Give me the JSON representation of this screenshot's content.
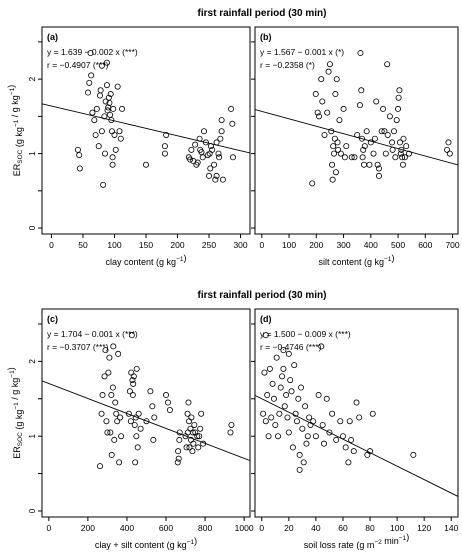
{
  "figure": {
    "section_titles": [
      "first rainfall period (30 min)",
      "first rainfall period (30 min)"
    ]
  },
  "chart_data": [
    {
      "type": "scatter",
      "panel_label": "(a)",
      "equation": "y = 1.639 − 0.002 x (***)",
      "correlation": "r = −0.4907 (***)",
      "xlabel": "clay content (g kg⁻¹)",
      "ylabel": "ERSOC (g kg⁻¹ / g kg⁻¹)",
      "xlim": [
        -15,
        315
      ],
      "ylim": [
        -0.08,
        2.7
      ],
      "xticks": [
        0,
        50,
        100,
        150,
        200,
        250,
        300
      ],
      "yticks": [
        0,
        0.5,
        1,
        1.5,
        2,
        2.5
      ],
      "ytick_labels": [
        "0",
        "",
        "1",
        "",
        "2",
        ""
      ],
      "regression": {
        "intercept": 1.639,
        "slope": -0.002
      },
      "points": [
        [
          42,
          1.05
        ],
        [
          44,
          0.98
        ],
        [
          45,
          0.8
        ],
        [
          58,
          1.82
        ],
        [
          60,
          1.95
        ],
        [
          62,
          2.35
        ],
        [
          63,
          2.05
        ],
        [
          65,
          1.55
        ],
        [
          68,
          1.45
        ],
        [
          70,
          1.25
        ],
        [
          72,
          1.6
        ],
        [
          75,
          1.1
        ],
        [
          77,
          1.78
        ],
        [
          78,
          1.85
        ],
        [
          80,
          2.18
        ],
        [
          80,
          1.3
        ],
        [
          82,
          0.58
        ],
        [
          84,
          1.5
        ],
        [
          85,
          1.0
        ],
        [
          86,
          1.7
        ],
        [
          88,
          1.92
        ],
        [
          88,
          2.22
        ],
        [
          89,
          1.58
        ],
        [
          90,
          1.62
        ],
        [
          91,
          1.75
        ],
        [
          92,
          1.68
        ],
        [
          93,
          1.52
        ],
        [
          94,
          1.8
        ],
        [
          95,
          1.45
        ],
        [
          96,
          1.3
        ],
        [
          97,
          0.95
        ],
        [
          97,
          0.85
        ],
        [
          98,
          1.6
        ],
        [
          100,
          1.25
        ],
        [
          102,
          1.05
        ],
        [
          105,
          1.9
        ],
        [
          108,
          1.3
        ],
        [
          110,
          1.2
        ],
        [
          112,
          1.6
        ],
        [
          150,
          0.85
        ],
        [
          180,
          1.0
        ],
        [
          180,
          1.1
        ],
        [
          182,
          1.25
        ],
        [
          218,
          0.95
        ],
        [
          220,
          0.92
        ],
        [
          222,
          1.05
        ],
        [
          225,
          0.9
        ],
        [
          228,
          1.12
        ],
        [
          230,
          0.85
        ],
        [
          232,
          0.88
        ],
        [
          235,
          1.2
        ],
        [
          236,
          1.05
        ],
        [
          238,
          1.02
        ],
        [
          240,
          0.95
        ],
        [
          242,
          1.3
        ],
        [
          245,
          1.15
        ],
        [
          248,
          0.98
        ],
        [
          250,
          0.7
        ],
        [
          251,
          1.0
        ],
        [
          252,
          0.8
        ],
        [
          253,
          1.1
        ],
        [
          255,
          1.05
        ],
        [
          258,
          0.85
        ],
        [
          260,
          0.65
        ],
        [
          262,
          0.7
        ],
        [
          262,
          1.15
        ],
        [
          265,
          1.0
        ],
        [
          266,
          0.95
        ],
        [
          268,
          1.2
        ],
        [
          270,
          1.3
        ],
        [
          270,
          1.45
        ],
        [
          272,
          0.65
        ],
        [
          285,
          1.6
        ],
        [
          287,
          1.4
        ],
        [
          288,
          0.95
        ]
      ]
    },
    {
      "type": "scatter",
      "panel_label": "(b)",
      "equation": "y = 1.567 − 0.001 x (*)",
      "correlation": "r = −0.2358 (*)",
      "xlabel": "silt content (g kg⁻¹)",
      "ylabel": "",
      "xlim": [
        -25,
        720
      ],
      "ylim": [
        -0.08,
        2.7
      ],
      "xticks": [
        0,
        100,
        200,
        300,
        400,
        500,
        600,
        700
      ],
      "yticks": [
        0,
        0.5,
        1,
        1.5,
        2,
        2.5
      ],
      "regression": {
        "intercept": 1.567,
        "slope": -0.001
      },
      "points": [
        [
          185,
          0.6
        ],
        [
          198,
          1.8
        ],
        [
          205,
          1.55
        ],
        [
          210,
          1.5
        ],
        [
          218,
          2.0
        ],
        [
          222,
          1.7
        ],
        [
          230,
          1.25
        ],
        [
          240,
          1.55
        ],
        [
          245,
          2.1
        ],
        [
          250,
          2.2
        ],
        [
          255,
          1.3
        ],
        [
          258,
          0.85
        ],
        [
          260,
          0.65
        ],
        [
          262,
          1.1
        ],
        [
          265,
          1.0
        ],
        [
          268,
          1.2
        ],
        [
          270,
          1.8
        ],
        [
          272,
          0.75
        ],
        [
          275,
          2.0
        ],
        [
          278,
          1.15
        ],
        [
          280,
          1.05
        ],
        [
          285,
          1.45
        ],
        [
          290,
          1.0
        ],
        [
          300,
          1.6
        ],
        [
          305,
          0.95
        ],
        [
          310,
          1.1
        ],
        [
          330,
          0.95
        ],
        [
          340,
          0.95
        ],
        [
          350,
          1.25
        ],
        [
          360,
          1.65
        ],
        [
          362,
          2.35
        ],
        [
          365,
          1.85
        ],
        [
          368,
          1.2
        ],
        [
          370,
          0.95
        ],
        [
          372,
          1.05
        ],
        [
          375,
          0.85
        ],
        [
          378,
          1.1
        ],
        [
          385,
          1.3
        ],
        [
          395,
          0.85
        ],
        [
          400,
          1.15
        ],
        [
          410,
          1.0
        ],
        [
          415,
          1.2
        ],
        [
          420,
          1.7
        ],
        [
          425,
          0.85
        ],
        [
          430,
          0.7
        ],
        [
          430,
          0.8
        ],
        [
          440,
          1.3
        ],
        [
          445,
          1.6
        ],
        [
          450,
          1.3
        ],
        [
          455,
          1.0
        ],
        [
          460,
          2.2
        ],
        [
          462,
          1.25
        ],
        [
          470,
          1.5
        ],
        [
          478,
          1.15
        ],
        [
          480,
          1.05
        ],
        [
          485,
          1.3
        ],
        [
          490,
          0.95
        ],
        [
          495,
          1.45
        ],
        [
          500,
          1.6
        ],
        [
          502,
          1.75
        ],
        [
          505,
          1.85
        ],
        [
          507,
          1.15
        ],
        [
          510,
          1.0
        ],
        [
          512,
          1.05
        ],
        [
          515,
          0.95
        ],
        [
          518,
          0.85
        ],
        [
          520,
          1.2
        ],
        [
          525,
          0.95
        ],
        [
          530,
          1.1
        ],
        [
          540,
          1.0
        ],
        [
          680,
          1.05
        ],
        [
          685,
          1.15
        ],
        [
          690,
          1.0
        ]
      ]
    },
    {
      "type": "scatter",
      "panel_label": "(c)",
      "equation": "y = 1.704 − 0.001 x (***)",
      "correlation": "r = −0.3707 (***)",
      "xlabel": "clay + silt content (g kg⁻¹)",
      "ylabel": "ERSOC (g kg⁻¹ / g kg⁻¹)",
      "xlim": [
        -35,
        1030
      ],
      "ylim": [
        -0.08,
        2.7
      ],
      "xticks": [
        0,
        200,
        400,
        600,
        800,
        1000
      ],
      "yticks": [
        0,
        0.5,
        1,
        1.5,
        2,
        2.5
      ],
      "ytick_labels": [
        "0",
        "",
        "1",
        "",
        "2",
        ""
      ],
      "regression": {
        "intercept": 1.704,
        "slope": -0.001
      },
      "points": [
        [
          262,
          0.6
        ],
        [
          270,
          1.3
        ],
        [
          275,
          1.55
        ],
        [
          285,
          1.8
        ],
        [
          290,
          2.15
        ],
        [
          295,
          1.2
        ],
        [
          300,
          1.05
        ],
        [
          305,
          1.85
        ],
        [
          310,
          2.05
        ],
        [
          315,
          1.05
        ],
        [
          320,
          1.55
        ],
        [
          322,
          0.75
        ],
        [
          328,
          1.65
        ],
        [
          330,
          2.2
        ],
        [
          335,
          0.95
        ],
        [
          340,
          1.45
        ],
        [
          345,
          1.3
        ],
        [
          350,
          1.2
        ],
        [
          355,
          2.1
        ],
        [
          360,
          0.65
        ],
        [
          365,
          1.25
        ],
        [
          370,
          1.0
        ],
        [
          410,
          1.3
        ],
        [
          415,
          1.6
        ],
        [
          420,
          1.2
        ],
        [
          422,
          1.85
        ],
        [
          425,
          2.35
        ],
        [
          428,
          1.75
        ],
        [
          430,
          1.55
        ],
        [
          432,
          1.7
        ],
        [
          435,
          1.8
        ],
        [
          440,
          1.15
        ],
        [
          442,
          0.65
        ],
        [
          445,
          1.25
        ],
        [
          448,
          1.0
        ],
        [
          450,
          1.9
        ],
        [
          455,
          0.85
        ],
        [
          460,
          1.3
        ],
        [
          470,
          1.1
        ],
        [
          500,
          1.2
        ],
        [
          520,
          1.6
        ],
        [
          530,
          1.4
        ],
        [
          535,
          0.95
        ],
        [
          540,
          1.25
        ],
        [
          600,
          1.55
        ],
        [
          610,
          1.45
        ],
        [
          620,
          1.35
        ],
        [
          660,
          0.65
        ],
        [
          662,
          0.8
        ],
        [
          665,
          0.7
        ],
        [
          668,
          0.95
        ],
        [
          670,
          1.05
        ],
        [
          700,
          1.0
        ],
        [
          705,
          0.85
        ],
        [
          710,
          1.3
        ],
        [
          712,
          1.05
        ],
        [
          715,
          1.45
        ],
        [
          718,
          1.2
        ],
        [
          720,
          0.85
        ],
        [
          725,
          1.1
        ],
        [
          728,
          0.95
        ],
        [
          730,
          1.25
        ],
        [
          735,
          0.8
        ],
        [
          738,
          1.05
        ],
        [
          740,
          0.9
        ],
        [
          745,
          1.15
        ],
        [
          750,
          1.05
        ],
        [
          760,
          1.0
        ],
        [
          765,
          0.85
        ],
        [
          770,
          1.0
        ],
        [
          775,
          1.1
        ],
        [
          780,
          1.3
        ],
        [
          790,
          0.9
        ],
        [
          930,
          1.05
        ],
        [
          935,
          1.15
        ]
      ]
    },
    {
      "type": "scatter",
      "panel_label": "(d)",
      "equation": "y = 1.500 − 0.009 x (***)",
      "correlation": "r = −0.4746 (***)",
      "xlabel": "soil loss rate (g m⁻² min⁻¹)",
      "ylabel": "",
      "xlim": [
        -5,
        145
      ],
      "ylim": [
        -0.08,
        2.7
      ],
      "xticks": [
        0,
        20,
        40,
        60,
        80,
        100,
        120,
        140
      ],
      "yticks": [
        0,
        0.5,
        1,
        1.5,
        2,
        2.5
      ],
      "regression": {
        "intercept": 1.5,
        "slope": -0.009
      },
      "points": [
        [
          1,
          1.3
        ],
        [
          2,
          1.85
        ],
        [
          3,
          2.35
        ],
        [
          3,
          1.2
        ],
        [
          4,
          1.55
        ],
        [
          5,
          1.0
        ],
        [
          6,
          1.9
        ],
        [
          7,
          1.25
        ],
        [
          8,
          1.7
        ],
        [
          9,
          1.5
        ],
        [
          10,
          1.15
        ],
        [
          11,
          2.05
        ],
        [
          12,
          1.0
        ],
        [
          13,
          1.3
        ],
        [
          14,
          1.65
        ],
        [
          15,
          1.8
        ],
        [
          16,
          2.15
        ],
        [
          16,
          1.9
        ],
        [
          17,
          1.4
        ],
        [
          18,
          1.55
        ],
        [
          19,
          1.25
        ],
        [
          20,
          2.1
        ],
        [
          20,
          1.05
        ],
        [
          21,
          1.75
        ],
        [
          22,
          1.6
        ],
        [
          23,
          0.85
        ],
        [
          24,
          1.95
        ],
        [
          25,
          1.3
        ],
        [
          26,
          1.2
        ],
        [
          27,
          1.5
        ],
        [
          28,
          0.75
        ],
        [
          28,
          0.55
        ],
        [
          29,
          1.65
        ],
        [
          30,
          1.1
        ],
        [
          31,
          0.65
        ],
        [
          32,
          1.4
        ],
        [
          33,
          0.9
        ],
        [
          34,
          1.0
        ],
        [
          35,
          1.25
        ],
        [
          36,
          1.15
        ],
        [
          38,
          1.2
        ],
        [
          40,
          1.0
        ],
        [
          42,
          1.55
        ],
        [
          44,
          2.2
        ],
        [
          45,
          1.15
        ],
        [
          46,
          0.9
        ],
        [
          48,
          1.5
        ],
        [
          50,
          1.05
        ],
        [
          52,
          1.3
        ],
        [
          55,
          0.95
        ],
        [
          58,
          1.2
        ],
        [
          60,
          1.0
        ],
        [
          62,
          0.85
        ],
        [
          64,
          0.65
        ],
        [
          65,
          1.2
        ],
        [
          66,
          0.95
        ],
        [
          68,
          0.8
        ],
        [
          70,
          1.45
        ],
        [
          72,
          1.25
        ],
        [
          78,
          0.75
        ],
        [
          80,
          0.8
        ],
        [
          82,
          1.3
        ],
        [
          112,
          0.75
        ]
      ]
    }
  ]
}
